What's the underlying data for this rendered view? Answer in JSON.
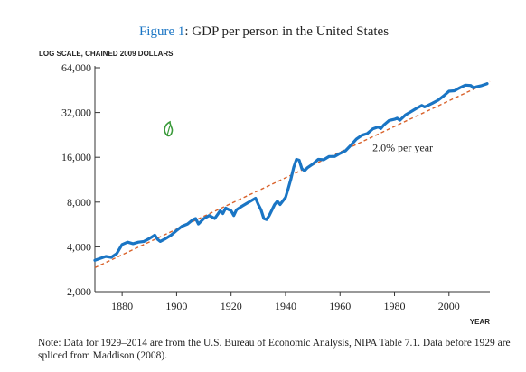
{
  "figure": {
    "title_prefix": "Figure 1",
    "title_sep": ": ",
    "title_rest": "GDP per person in the United States",
    "note": "Note: Data for 1929–2014 are from the U.S. Bureau of Economic Analysis, NIPA Table 7.1. Data before 1929 are spliced from Maddison (2008)."
  },
  "colors": {
    "series": "#1a75c4",
    "trend": "#d9622b",
    "title_accent": "#1a75c4",
    "axis": "#333333",
    "leaf_icon": "#3a9a3a"
  },
  "icons": [
    "leaf-icon"
  ],
  "chart_data": {
    "type": "line",
    "title": "GDP per person in the United States",
    "ylabel": "LOG SCALE, CHAINED 2009 DOLLARS",
    "xlabel": "YEAR",
    "yscale": "log2",
    "xlim": [
      1870,
      2015
    ],
    "ylim": [
      2000,
      64000
    ],
    "x_ticks": [
      1880,
      1900,
      1920,
      1940,
      1960,
      1980,
      2000
    ],
    "x_tick_labels": [
      "1880",
      "1900",
      "1920",
      "1940",
      "1960",
      "1980",
      "2000"
    ],
    "y_ticks": [
      2000,
      4000,
      8000,
      16000,
      32000,
      64000
    ],
    "y_tick_labels": [
      "2,000",
      "4,000",
      "8,000",
      "16,000",
      "32,000",
      "64,000"
    ],
    "grid": false,
    "legend": "none",
    "annotations": [
      {
        "text": "2.0% per year",
        "x": 1983,
        "y": 17600
      }
    ],
    "series": [
      {
        "style": "solid",
        "color": "#1a75c4",
        "x": [
          1870,
          1872,
          1874,
          1876,
          1878,
          1880,
          1882,
          1884,
          1886,
          1888,
          1890,
          1892,
          1893,
          1894,
          1896,
          1898,
          1900,
          1902,
          1904,
          1906,
          1907,
          1908,
          1910,
          1912,
          1914,
          1916,
          1917,
          1918,
          1920,
          1921,
          1922,
          1924,
          1926,
          1929,
          1930,
          1931,
          1932,
          1933,
          1934,
          1936,
          1937,
          1938,
          1940,
          1941,
          1942,
          1943,
          1944,
          1945,
          1946,
          1947,
          1948,
          1950,
          1952,
          1954,
          1956,
          1958,
          1960,
          1962,
          1964,
          1966,
          1968,
          1970,
          1972,
          1974,
          1975,
          1976,
          1978,
          1980,
          1981,
          1982,
          1984,
          1986,
          1988,
          1990,
          1991,
          1992,
          1994,
          1996,
          1998,
          2000,
          2002,
          2004,
          2006,
          2008,
          2009,
          2010,
          2012,
          2014
        ],
        "values": [
          3250,
          3350,
          3450,
          3400,
          3600,
          4150,
          4300,
          4200,
          4300,
          4350,
          4550,
          4800,
          4500,
          4350,
          4550,
          4800,
          5150,
          5500,
          5700,
          6100,
          6200,
          5700,
          6200,
          6500,
          6200,
          7000,
          6700,
          7300,
          7000,
          6500,
          7100,
          7500,
          7900,
          8500,
          7700,
          7100,
          6200,
          6100,
          6500,
          7700,
          8100,
          7700,
          8600,
          9900,
          11500,
          13700,
          15500,
          15300,
          13400,
          13000,
          13600,
          14400,
          15500,
          15400,
          16200,
          16200,
          17000,
          17700,
          19300,
          21200,
          22500,
          23100,
          24800,
          25600,
          25000,
          26300,
          28300,
          28800,
          29300,
          28400,
          30800,
          32400,
          34100,
          35700,
          34900,
          35500,
          37000,
          38700,
          41300,
          44500,
          44800,
          46900,
          48900,
          48600,
          46800,
          47600,
          48500,
          50000
        ]
      },
      {
        "style": "dashed",
        "color": "#d9622b",
        "x": [
          1870,
          2015
        ],
        "values": [
          2900,
          51700
        ]
      }
    ]
  }
}
